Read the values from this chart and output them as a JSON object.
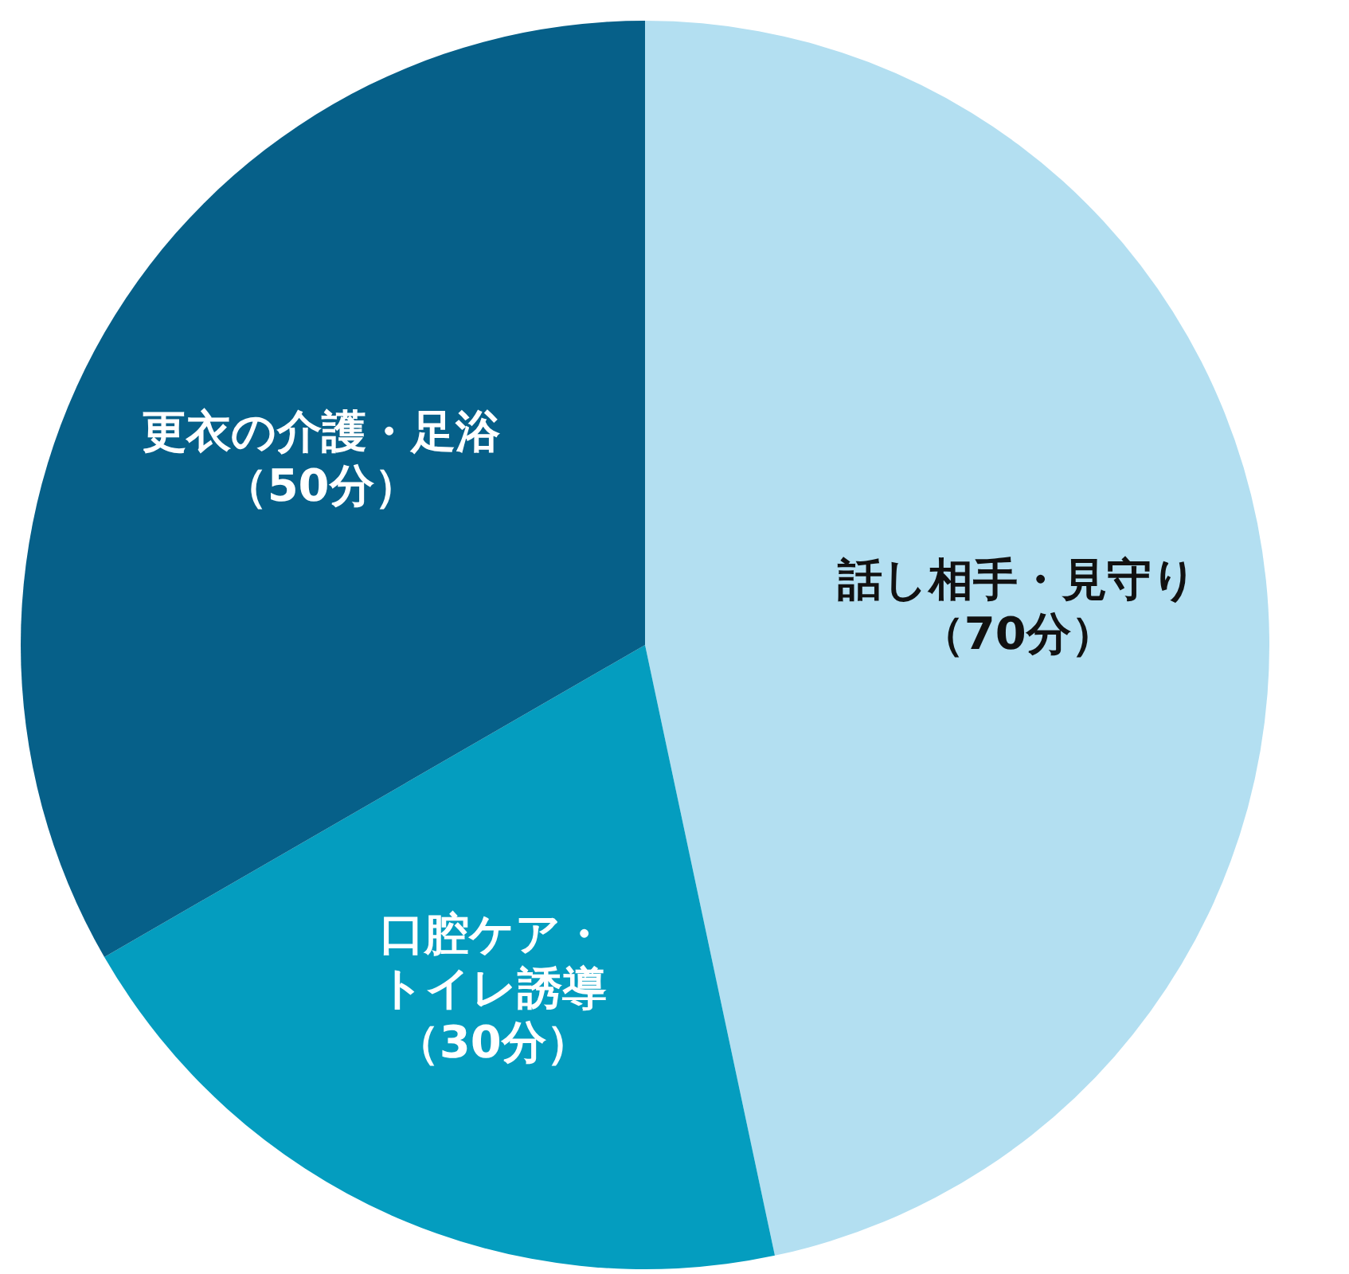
{
  "chart_data": {
    "type": "pie",
    "categories": [
      "話し相手・見守り",
      "口腔ケア・トイレ誘導",
      "更衣の介護・足浴"
    ],
    "values": [
      70,
      30,
      50
    ],
    "value_labels": [
      "（70分）",
      "（30分）",
      "（50分）"
    ],
    "colors": [
      "#b3dff1",
      "#049dbf",
      "#066089"
    ],
    "legend": false
  }
}
